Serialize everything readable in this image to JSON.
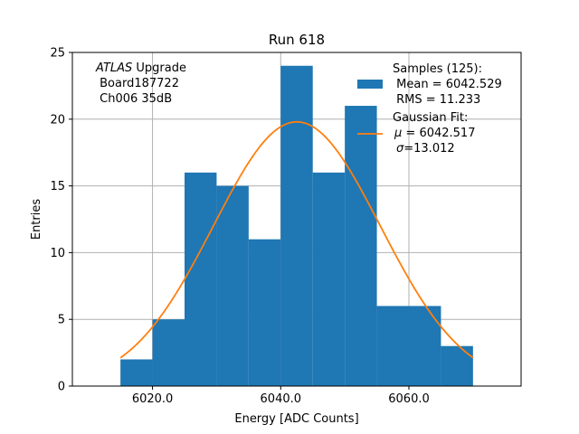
{
  "chart_data": {
    "type": "bar",
    "title": "Run 618",
    "xlabel": "Energy [ADC Counts]",
    "ylabel": "Entries",
    "xlim": [
      6007.5,
      6077.5
    ],
    "ylim": [
      0,
      25
    ],
    "grid": true,
    "x_ticks": [
      6020.0,
      6040.0,
      6060.0
    ],
    "x_tick_labels": [
      "6020.0",
      "6040.0",
      "6060.0"
    ],
    "y_ticks": [
      0,
      5,
      10,
      15,
      20,
      25
    ],
    "y_tick_labels": [
      "0",
      "5",
      "10",
      "15",
      "20",
      "25"
    ],
    "bins": {
      "edges": [
        6015,
        6020,
        6025,
        6030,
        6035,
        6040,
        6045,
        6050,
        6055,
        6060,
        6065,
        6070
      ],
      "counts": [
        2,
        5,
        16,
        15,
        11,
        24,
        16,
        21,
        6,
        6,
        3
      ]
    },
    "fit": {
      "type": "gaussian",
      "mu": 6042.517,
      "sigma": 13.012,
      "amplitude": 19.8,
      "x_range": [
        6015,
        6070
      ]
    },
    "annotation": {
      "line1_italic": "ATLAS",
      "line1_rest": " Upgrade",
      "line2": " Board187722",
      "line3": " Ch006 35dB"
    },
    "legend": {
      "position": "upper-right",
      "samples": {
        "line1": "Samples (125):",
        "line2": " Mean = 6042.529",
        "line3": " RMS = 11.233"
      },
      "fit": {
        "line1": "Gaussian Fit:",
        "line2_symbol": "μ",
        "line2_rest": " = 6042.517",
        "line3_symbol": "σ",
        "line3_rest": "=13.012"
      }
    },
    "colors": {
      "bars": "#1f77b4",
      "fit_line": "#ff7f0e",
      "grid": "#b0b0b0"
    }
  }
}
